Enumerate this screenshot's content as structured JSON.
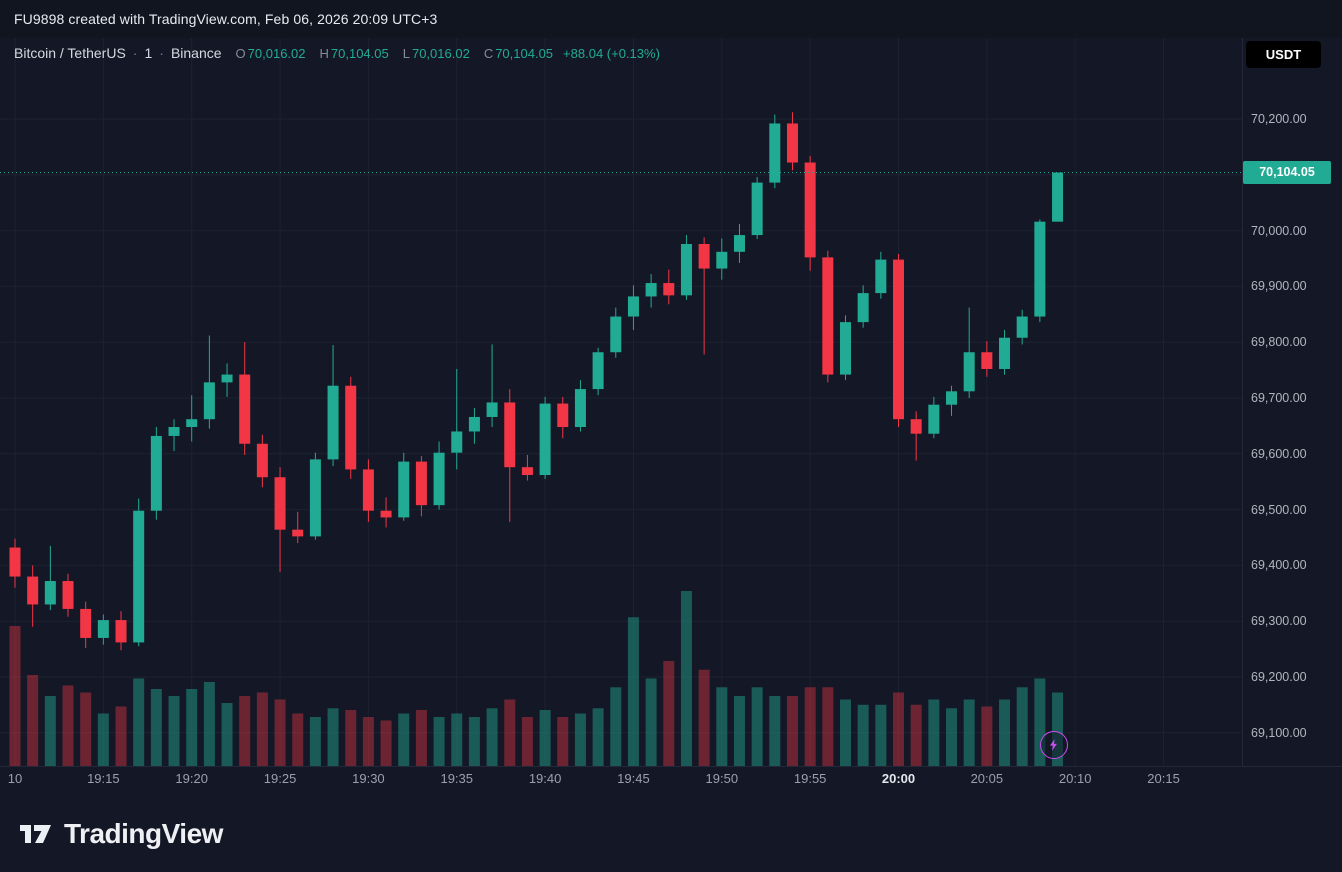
{
  "attribution": "FU9898 created with TradingView.com, Feb 06, 2026 20:09 UTC+3",
  "legend": {
    "symbol": "Bitcoin / TetherUS",
    "separator": "·",
    "interval": "1",
    "exchange": "Binance",
    "o_label": "O",
    "o": "70,016.02",
    "h_label": "H",
    "h": "70,104.05",
    "l_label": "L",
    "l": "70,016.02",
    "c_label": "C",
    "c": "70,104.05",
    "change": "+88.04 (+0.13%)"
  },
  "currency_button": "USDT",
  "price_badge": "70,104.05",
  "footer": {
    "brand": "TradingView"
  },
  "icons": {
    "bolt": "flash-icon",
    "logo": "tradingview-logo"
  },
  "colors": {
    "up": "#22ab94",
    "down": "#f23645",
    "volume_up": "rgba(34,171,148,0.45)",
    "volume_down": "rgba(242,54,69,0.40)",
    "grid": "#1d2230",
    "axis_line": "#232838",
    "axis_text": "#b2b5be",
    "background": "#141826",
    "accent_purple": "#c84ef0"
  },
  "chart_data": {
    "type": "candlestick+volume",
    "title": "Bitcoin / TetherUS · 1 · Binance",
    "interval_minutes": 1,
    "last_price": 70104.05,
    "ylim": [
      69050,
      70250
    ],
    "grid": true,
    "price_ticks": [
      {
        "value": 70200,
        "label": "70,200.00"
      },
      {
        "value": 70100,
        "label": "70,100.00"
      },
      {
        "value": 70000,
        "label": "70,000.00"
      },
      {
        "value": 69900,
        "label": "69,900.00"
      },
      {
        "value": 69800,
        "label": "69,800.00"
      },
      {
        "value": 69700,
        "label": "69,700.00"
      },
      {
        "value": 69600,
        "label": "69,600.00"
      },
      {
        "value": 69500,
        "label": "69,500.00"
      },
      {
        "value": 69400,
        "label": "69,400.00"
      },
      {
        "value": 69300,
        "label": "69,300.00"
      },
      {
        "value": 69200,
        "label": "69,200.00"
      },
      {
        "value": 69100,
        "label": "69,100.00"
      }
    ],
    "time_ticks": [
      {
        "label": "10",
        "i": 0
      },
      {
        "label": "19:15",
        "i": 5
      },
      {
        "label": "19:20",
        "i": 10
      },
      {
        "label": "19:25",
        "i": 15
      },
      {
        "label": "19:30",
        "i": 20
      },
      {
        "label": "19:35",
        "i": 25
      },
      {
        "label": "19:40",
        "i": 30
      },
      {
        "label": "19:45",
        "i": 35
      },
      {
        "label": "19:50",
        "i": 40
      },
      {
        "label": "19:55",
        "i": 45
      },
      {
        "label": "20:00",
        "i": 50,
        "emphasis": true
      },
      {
        "label": "20:05",
        "i": 55
      },
      {
        "label": "20:10",
        "i": 60
      },
      {
        "label": "20:15",
        "i": 65
      }
    ],
    "x": [
      "19:10",
      "19:11",
      "19:12",
      "19:13",
      "19:14",
      "19:15",
      "19:16",
      "19:17",
      "19:18",
      "19:19",
      "19:20",
      "19:21",
      "19:22",
      "19:23",
      "19:24",
      "19:25",
      "19:26",
      "19:27",
      "19:28",
      "19:29",
      "19:30",
      "19:31",
      "19:32",
      "19:33",
      "19:34",
      "19:35",
      "19:36",
      "19:37",
      "19:38",
      "19:39",
      "19:40",
      "19:41",
      "19:42",
      "19:43",
      "19:44",
      "19:45",
      "19:46",
      "19:47",
      "19:48",
      "19:49",
      "19:50",
      "19:51",
      "19:52",
      "19:53",
      "19:54",
      "19:55",
      "19:56",
      "19:57",
      "19:58",
      "19:59",
      "20:00",
      "20:01",
      "20:02",
      "20:03",
      "20:04",
      "20:05",
      "20:06",
      "20:07",
      "20:08",
      "20:09"
    ],
    "candles": [
      [
        69432,
        69448,
        69360,
        69380
      ],
      [
        69380,
        69400,
        69290,
        69330
      ],
      [
        69330,
        69435,
        69320,
        69372
      ],
      [
        69372,
        69385,
        69308,
        69322
      ],
      [
        69322,
        69335,
        69252,
        69270
      ],
      [
        69270,
        69312,
        69258,
        69302
      ],
      [
        69302,
        69318,
        69248,
        69262
      ],
      [
        69262,
        69520,
        69255,
        69498
      ],
      [
        69498,
        69648,
        69482,
        69632
      ],
      [
        69632,
        69662,
        69605,
        69648
      ],
      [
        69648,
        69705,
        69622,
        69662
      ],
      [
        69662,
        69812,
        69645,
        69728
      ],
      [
        69728,
        69762,
        69702,
        69742
      ],
      [
        69742,
        69800,
        69598,
        69618
      ],
      [
        69618,
        69634,
        69540,
        69558
      ],
      [
        69558,
        69576,
        69388,
        69464
      ],
      [
        69464,
        69496,
        69440,
        69452
      ],
      [
        69452,
        69602,
        69446,
        69590
      ],
      [
        69590,
        69795,
        69578,
        69722
      ],
      [
        69722,
        69738,
        69555,
        69572
      ],
      [
        69572,
        69590,
        69478,
        69498
      ],
      [
        69498,
        69522,
        69468,
        69486
      ],
      [
        69486,
        69602,
        69480,
        69586
      ],
      [
        69586,
        69596,
        69488,
        69508
      ],
      [
        69508,
        69622,
        69500,
        69602
      ],
      [
        69602,
        69752,
        69572,
        69640
      ],
      [
        69640,
        69682,
        69618,
        69666
      ],
      [
        69666,
        69796,
        69648,
        69692
      ],
      [
        69692,
        69716,
        69478,
        69576
      ],
      [
        69576,
        69598,
        69552,
        69562
      ],
      [
        69562,
        69702,
        69555,
        69690
      ],
      [
        69690,
        69702,
        69628,
        69648
      ],
      [
        69648,
        69732,
        69640,
        69716
      ],
      [
        69716,
        69790,
        69705,
        69782
      ],
      [
        69782,
        69862,
        69772,
        69846
      ],
      [
        69846,
        69902,
        69822,
        69882
      ],
      [
        69882,
        69922,
        69862,
        69906
      ],
      [
        69906,
        69930,
        69868,
        69884
      ],
      [
        69884,
        69992,
        69876,
        69976
      ],
      [
        69976,
        69988,
        69778,
        69932
      ],
      [
        69932,
        69986,
        69912,
        69962
      ],
      [
        69962,
        70012,
        69942,
        69992
      ],
      [
        69992,
        70096,
        69985,
        70086
      ],
      [
        70086,
        70208,
        70076,
        70192
      ],
      [
        70192,
        70212,
        70108,
        70122
      ],
      [
        70122,
        70134,
        69928,
        69952
      ],
      [
        69952,
        69964,
        69728,
        69742
      ],
      [
        69742,
        69848,
        69732,
        69836
      ],
      [
        69836,
        69902,
        69826,
        69888
      ],
      [
        69888,
        69962,
        69878,
        69948
      ],
      [
        69948,
        69958,
        69648,
        69662
      ],
      [
        69662,
        69676,
        69588,
        69636
      ],
      [
        69636,
        69702,
        69628,
        69688
      ],
      [
        69688,
        69722,
        69668,
        69712
      ],
      [
        69712,
        69862,
        69700,
        69782
      ],
      [
        69782,
        69802,
        69738,
        69752
      ],
      [
        69752,
        69822,
        69742,
        69808
      ],
      [
        69808,
        69858,
        69796,
        69846
      ],
      [
        69846,
        70020,
        69836,
        70016
      ],
      [
        70016.02,
        70104.05,
        70016.02,
        70104.05
      ]
    ],
    "volume_relative": [
      0.8,
      0.52,
      0.4,
      0.46,
      0.42,
      0.3,
      0.34,
      0.5,
      0.44,
      0.4,
      0.44,
      0.48,
      0.36,
      0.4,
      0.42,
      0.38,
      0.3,
      0.28,
      0.33,
      0.32,
      0.28,
      0.26,
      0.3,
      0.32,
      0.28,
      0.3,
      0.28,
      0.33,
      0.38,
      0.28,
      0.32,
      0.28,
      0.3,
      0.33,
      0.45,
      0.85,
      0.5,
      0.6,
      1.0,
      0.55,
      0.45,
      0.4,
      0.45,
      0.4,
      0.4,
      0.45,
      0.45,
      0.38,
      0.35,
      0.35,
      0.42,
      0.35,
      0.38,
      0.33,
      0.38,
      0.34,
      0.38,
      0.45,
      0.5,
      0.42
    ]
  }
}
